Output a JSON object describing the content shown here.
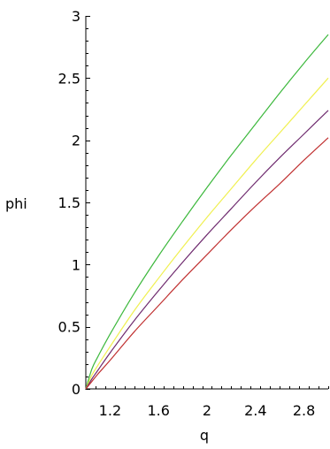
{
  "chart_data": {
    "type": "line",
    "title": "",
    "xlabel": "q",
    "ylabel": "phi",
    "xlim": [
      1,
      3
    ],
    "ylim": [
      0,
      3
    ],
    "x_ticks": [
      1.2,
      1.6,
      2,
      2.4,
      2.8
    ],
    "x_tick_labels": [
      "1.2",
      "1.6",
      "2",
      "2.4",
      "2.8"
    ],
    "y_ticks": [
      0,
      0.5,
      1,
      1.5,
      2,
      2.5,
      3
    ],
    "y_tick_labels": [
      "0",
      "0.5",
      "1",
      "1.5",
      "2",
      "2.5",
      "3"
    ],
    "grid": false,
    "legend": "none",
    "x": [
      1.0,
      1.05,
      1.1,
      1.2,
      1.4,
      1.6,
      1.8,
      2.0,
      2.2,
      2.4,
      2.6,
      2.8,
      3.0
    ],
    "series": [
      {
        "color": "#3cb83c",
        "values": [
          0.0,
          0.16,
          0.26,
          0.44,
          0.77,
          1.07,
          1.35,
          1.62,
          1.88,
          2.13,
          2.38,
          2.62,
          2.85
        ]
      },
      {
        "color": "#f0f050",
        "values": [
          0.0,
          0.11,
          0.19,
          0.34,
          0.63,
          0.89,
          1.14,
          1.38,
          1.61,
          1.84,
          2.06,
          2.28,
          2.5
        ]
      },
      {
        "color": "#6e2a6e",
        "values": [
          0.0,
          0.08,
          0.15,
          0.29,
          0.55,
          0.79,
          1.02,
          1.24,
          1.45,
          1.66,
          1.86,
          2.05,
          2.24
        ]
      },
      {
        "color": "#c03030",
        "values": [
          0.0,
          0.06,
          0.12,
          0.23,
          0.46,
          0.67,
          0.88,
          1.08,
          1.28,
          1.47,
          1.65,
          1.84,
          2.02
        ]
      }
    ]
  }
}
